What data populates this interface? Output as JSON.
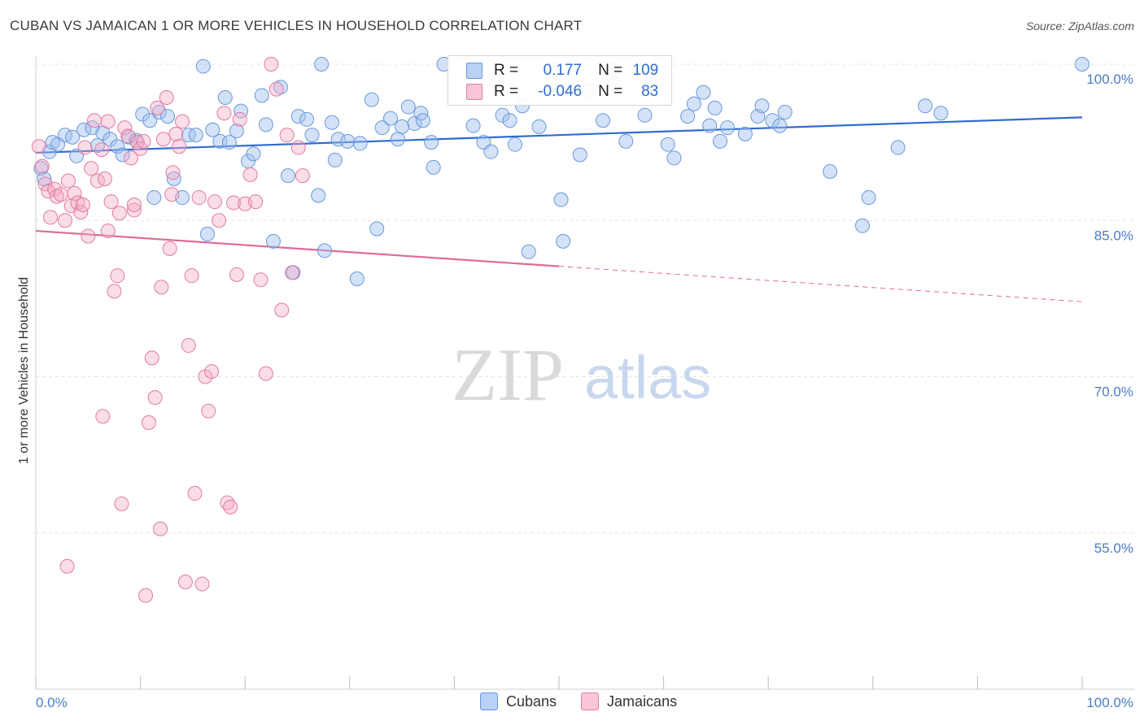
{
  "header": {
    "title": "CUBAN VS JAMAICAN 1 OR MORE VEHICLES IN HOUSEHOLD CORRELATION CHART",
    "source": "Source: ZipAtlas.com"
  },
  "watermark": {
    "zip": "ZIP",
    "atlas": "atlas"
  },
  "legend": {
    "rows": [
      {
        "r_label": "R =",
        "r_value": "0.177",
        "n_label": "N =",
        "n_value": "109",
        "color": "#9dbff0"
      },
      {
        "r_label": "R =",
        "r_value": "-0.046",
        "n_label": "N =",
        "n_value": "83",
        "color": "#f4a9c4"
      }
    ]
  },
  "bottom_legend": {
    "items": [
      {
        "label": "Cubans",
        "color": "#9dbff0"
      },
      {
        "label": "Jamaicans",
        "color": "#f4a9c4"
      }
    ]
  },
  "chart_data": {
    "type": "scatter",
    "title": "CUBAN VS JAMAICAN 1 OR MORE VEHICLES IN HOUSEHOLD CORRELATION CHART",
    "xlabel": "",
    "ylabel": "1 or more Vehicles in Household",
    "xlim": [
      0,
      100
    ],
    "ylim": [
      40,
      100
    ],
    "x_tick_labels": [
      "0.0%",
      "100.0%"
    ],
    "y_ticks": [
      100,
      85,
      70,
      55
    ],
    "y_tick_labels": [
      "100.0%",
      "85.0%",
      "70.0%",
      "55.0%"
    ],
    "grid": true,
    "legend_position": "top-center",
    "series": [
      {
        "name": "Cubans",
        "color": "#9dbff0",
        "stroke": "#6a98dc",
        "trend": {
          "x": [
            0,
            100
          ],
          "y": [
            91.5,
            94.9
          ],
          "dashed_from": null
        },
        "points": [
          [
            0.5,
            90.0
          ],
          [
            0.8,
            89.0
          ],
          [
            1.3,
            91.6
          ],
          [
            1.6,
            92.5
          ],
          [
            2.1,
            92.3
          ],
          [
            2.8,
            93.2
          ],
          [
            3.5,
            93.0
          ],
          [
            3.9,
            91.2
          ],
          [
            4.6,
            93.7
          ],
          [
            5.4,
            93.9
          ],
          [
            5.9,
            92.2
          ],
          [
            6.4,
            93.4
          ],
          [
            7.1,
            92.8
          ],
          [
            7.8,
            92.1
          ],
          [
            8.3,
            91.3
          ],
          [
            8.9,
            93.0
          ],
          [
            9.6,
            92.7
          ],
          [
            10.2,
            95.2
          ],
          [
            10.9,
            94.6
          ],
          [
            11.3,
            87.2
          ],
          [
            11.8,
            95.4
          ],
          [
            12.6,
            95.0
          ],
          [
            13.2,
            89.0
          ],
          [
            14.0,
            87.2
          ],
          [
            14.6,
            93.2
          ],
          [
            15.3,
            93.2
          ],
          [
            16.0,
            99.8
          ],
          [
            16.4,
            83.7
          ],
          [
            16.9,
            93.7
          ],
          [
            17.6,
            92.6
          ],
          [
            18.1,
            96.8
          ],
          [
            18.5,
            92.5
          ],
          [
            19.2,
            93.6
          ],
          [
            19.6,
            95.5
          ],
          [
            20.3,
            90.7
          ],
          [
            20.8,
            91.4
          ],
          [
            21.6,
            97.0
          ],
          [
            22.0,
            94.2
          ],
          [
            22.7,
            83.0
          ],
          [
            23.4,
            97.8
          ],
          [
            24.1,
            89.3
          ],
          [
            24.6,
            80.0
          ],
          [
            25.1,
            95.0
          ],
          [
            25.9,
            94.7
          ],
          [
            26.4,
            93.2
          ],
          [
            27.0,
            87.4
          ],
          [
            27.3,
            100.0
          ],
          [
            27.6,
            82.1
          ],
          [
            28.3,
            94.4
          ],
          [
            28.6,
            90.8
          ],
          [
            28.9,
            92.8
          ],
          [
            29.8,
            92.6
          ],
          [
            30.7,
            79.4
          ],
          [
            31.0,
            92.4
          ],
          [
            32.1,
            96.6
          ],
          [
            32.6,
            84.2
          ],
          [
            33.1,
            93.9
          ],
          [
            33.9,
            94.8
          ],
          [
            34.6,
            92.8
          ],
          [
            35.0,
            94.0
          ],
          [
            35.6,
            95.9
          ],
          [
            36.2,
            94.3
          ],
          [
            36.8,
            95.3
          ],
          [
            37.8,
            92.5
          ],
          [
            37.0,
            94.6
          ],
          [
            38.0,
            90.1
          ],
          [
            39.0,
            100.0
          ],
          [
            41.8,
            94.1
          ],
          [
            42.8,
            92.5
          ],
          [
            43.5,
            91.6
          ],
          [
            44.1,
            98.3
          ],
          [
            44.6,
            95.1
          ],
          [
            45.3,
            94.6
          ],
          [
            45.8,
            92.3
          ],
          [
            46.5,
            96.0
          ],
          [
            47.1,
            82.0
          ],
          [
            48.1,
            94.0
          ],
          [
            50.2,
            87.0
          ],
          [
            50.4,
            83.0
          ],
          [
            52.0,
            91.3
          ],
          [
            52.8,
            97.5
          ],
          [
            54.2,
            94.6
          ],
          [
            54.8,
            99.0
          ],
          [
            55.3,
            98.0
          ],
          [
            56.4,
            92.6
          ],
          [
            58.2,
            95.1
          ],
          [
            58.8,
            98.1
          ],
          [
            60.4,
            92.3
          ],
          [
            61.0,
            91.0
          ],
          [
            62.3,
            95.0
          ],
          [
            62.9,
            96.2
          ],
          [
            63.8,
            97.3
          ],
          [
            64.4,
            94.1
          ],
          [
            64.9,
            95.8
          ],
          [
            65.4,
            92.6
          ],
          [
            66.1,
            93.9
          ],
          [
            67.8,
            93.3
          ],
          [
            69.0,
            95.0
          ],
          [
            69.4,
            96.0
          ],
          [
            70.4,
            94.6
          ],
          [
            71.1,
            94.1
          ],
          [
            71.6,
            95.4
          ],
          [
            75.9,
            89.7
          ],
          [
            79.0,
            84.5
          ],
          [
            79.6,
            87.2
          ],
          [
            82.4,
            92.0
          ],
          [
            100.0,
            100.0
          ],
          [
            85.0,
            96.0
          ],
          [
            86.5,
            95.3
          ]
        ]
      },
      {
        "name": "Jamaicans",
        "color": "#f4a9c4",
        "stroke": "#e27aa3",
        "trend": {
          "x": [
            0,
            100
          ],
          "y": [
            84.0,
            77.2
          ],
          "dashed_from": 50
        },
        "points": [
          [
            0.3,
            92.1
          ],
          [
            0.6,
            90.2
          ],
          [
            0.9,
            88.5
          ],
          [
            1.2,
            87.8
          ],
          [
            1.4,
            85.3
          ],
          [
            1.8,
            88.0
          ],
          [
            2.0,
            87.3
          ],
          [
            2.4,
            87.5
          ],
          [
            2.8,
            85.0
          ],
          [
            3.1,
            88.8
          ],
          [
            3.4,
            86.4
          ],
          [
            3.7,
            87.6
          ],
          [
            4.0,
            86.7
          ],
          [
            4.3,
            85.8
          ],
          [
            4.5,
            86.5
          ],
          [
            4.7,
            92.0
          ],
          [
            5.0,
            83.5
          ],
          [
            5.3,
            90.0
          ],
          [
            5.6,
            94.6
          ],
          [
            5.9,
            88.8
          ],
          [
            6.3,
            91.8
          ],
          [
            6.6,
            89.0
          ],
          [
            6.9,
            94.5
          ],
          [
            7.2,
            86.8
          ],
          [
            7.5,
            78.2
          ],
          [
            7.8,
            79.7
          ],
          [
            8.0,
            85.7
          ],
          [
            8.2,
            57.8
          ],
          [
            8.5,
            93.9
          ],
          [
            8.8,
            93.1
          ],
          [
            9.1,
            91.0
          ],
          [
            9.4,
            86.0
          ],
          [
            9.7,
            92.5
          ],
          [
            10.0,
            91.9
          ],
          [
            10.3,
            92.6
          ],
          [
            10.5,
            49.0
          ],
          [
            10.8,
            65.6
          ],
          [
            11.1,
            71.8
          ],
          [
            11.4,
            68.0
          ],
          [
            11.6,
            95.8
          ],
          [
            11.9,
            55.4
          ],
          [
            12.2,
            92.8
          ],
          [
            12.5,
            96.8
          ],
          [
            12.8,
            82.3
          ],
          [
            13.1,
            89.6
          ],
          [
            13.4,
            93.3
          ],
          [
            13.7,
            92.1
          ],
          [
            14.0,
            94.5
          ],
          [
            14.3,
            50.3
          ],
          [
            14.6,
            73.0
          ],
          [
            14.9,
            79.7
          ],
          [
            15.2,
            58.8
          ],
          [
            15.6,
            87.2
          ],
          [
            15.9,
            50.1
          ],
          [
            16.2,
            70.0
          ],
          [
            16.5,
            66.7
          ],
          [
            16.8,
            70.5
          ],
          [
            17.1,
            86.8
          ],
          [
            17.5,
            85.0
          ],
          [
            18.0,
            95.3
          ],
          [
            18.3,
            57.9
          ],
          [
            18.6,
            57.5
          ],
          [
            18.9,
            86.7
          ],
          [
            19.2,
            79.8
          ],
          [
            19.5,
            94.7
          ],
          [
            20.0,
            86.6
          ],
          [
            20.5,
            89.4
          ],
          [
            21.0,
            86.8
          ],
          [
            21.5,
            79.3
          ],
          [
            22.0,
            70.3
          ],
          [
            22.5,
            100.0
          ],
          [
            23.0,
            97.6
          ],
          [
            23.5,
            76.4
          ],
          [
            24.0,
            93.2
          ],
          [
            3.0,
            51.8
          ],
          [
            6.4,
            66.2
          ],
          [
            6.9,
            84.0
          ],
          [
            9.4,
            86.5
          ],
          [
            12.0,
            78.6
          ],
          [
            13.0,
            87.5
          ],
          [
            24.5,
            80.0
          ],
          [
            25.1,
            92.0
          ],
          [
            25.5,
            89.3
          ]
        ]
      }
    ]
  }
}
